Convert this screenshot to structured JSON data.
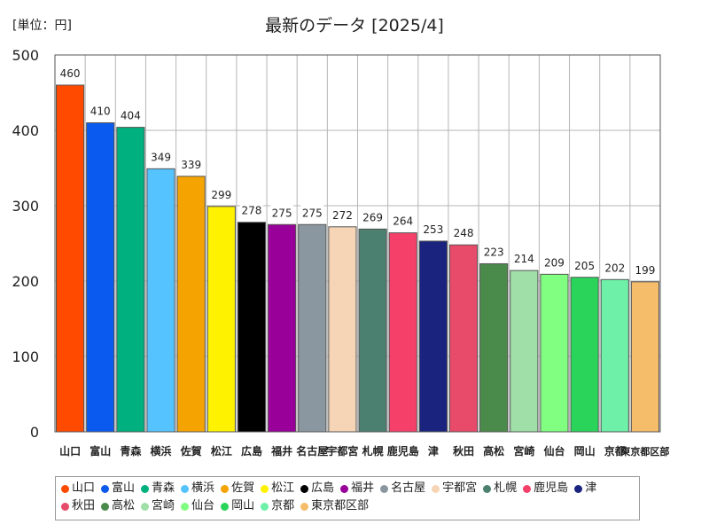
{
  "header": {
    "unit": "[単位：円]",
    "title": "最新のデータ [2025/4]"
  },
  "chart_data": {
    "type": "bar",
    "title": "最新のデータ [2025/4]",
    "unit": "[単位：円]",
    "ylim": [
      0,
      500
    ],
    "yticks": [
      0,
      100,
      200,
      300,
      400,
      500
    ],
    "grid": true,
    "legend_position": "bottom",
    "categories": [
      "山口",
      "富山",
      "青森",
      "横浜",
      "佐賀",
      "松江",
      "広島",
      "福井",
      "名古屋",
      "宇都宮",
      "札幌",
      "鹿児島",
      "津",
      "秋田",
      "高松",
      "宮崎",
      "仙台",
      "岡山",
      "京都",
      "東京都区部"
    ],
    "values": [
      460,
      410,
      404,
      349,
      339,
      299,
      278,
      275,
      275,
      272,
      269,
      264,
      253,
      248,
      223,
      214,
      209,
      205,
      202,
      199
    ],
    "colors": [
      "#ff4a00",
      "#0a5af0",
      "#00b07e",
      "#55c3ff",
      "#f5a300",
      "#fff200",
      "#000000",
      "#990099",
      "#8a97a0",
      "#f5d5b5",
      "#4b8070",
      "#f5406a",
      "#1a237e",
      "#e84a6a",
      "#4a8a4a",
      "#a0e0a8",
      "#80ff80",
      "#2ad45a",
      "#6ff0a8",
      "#f5bd6a"
    ]
  }
}
